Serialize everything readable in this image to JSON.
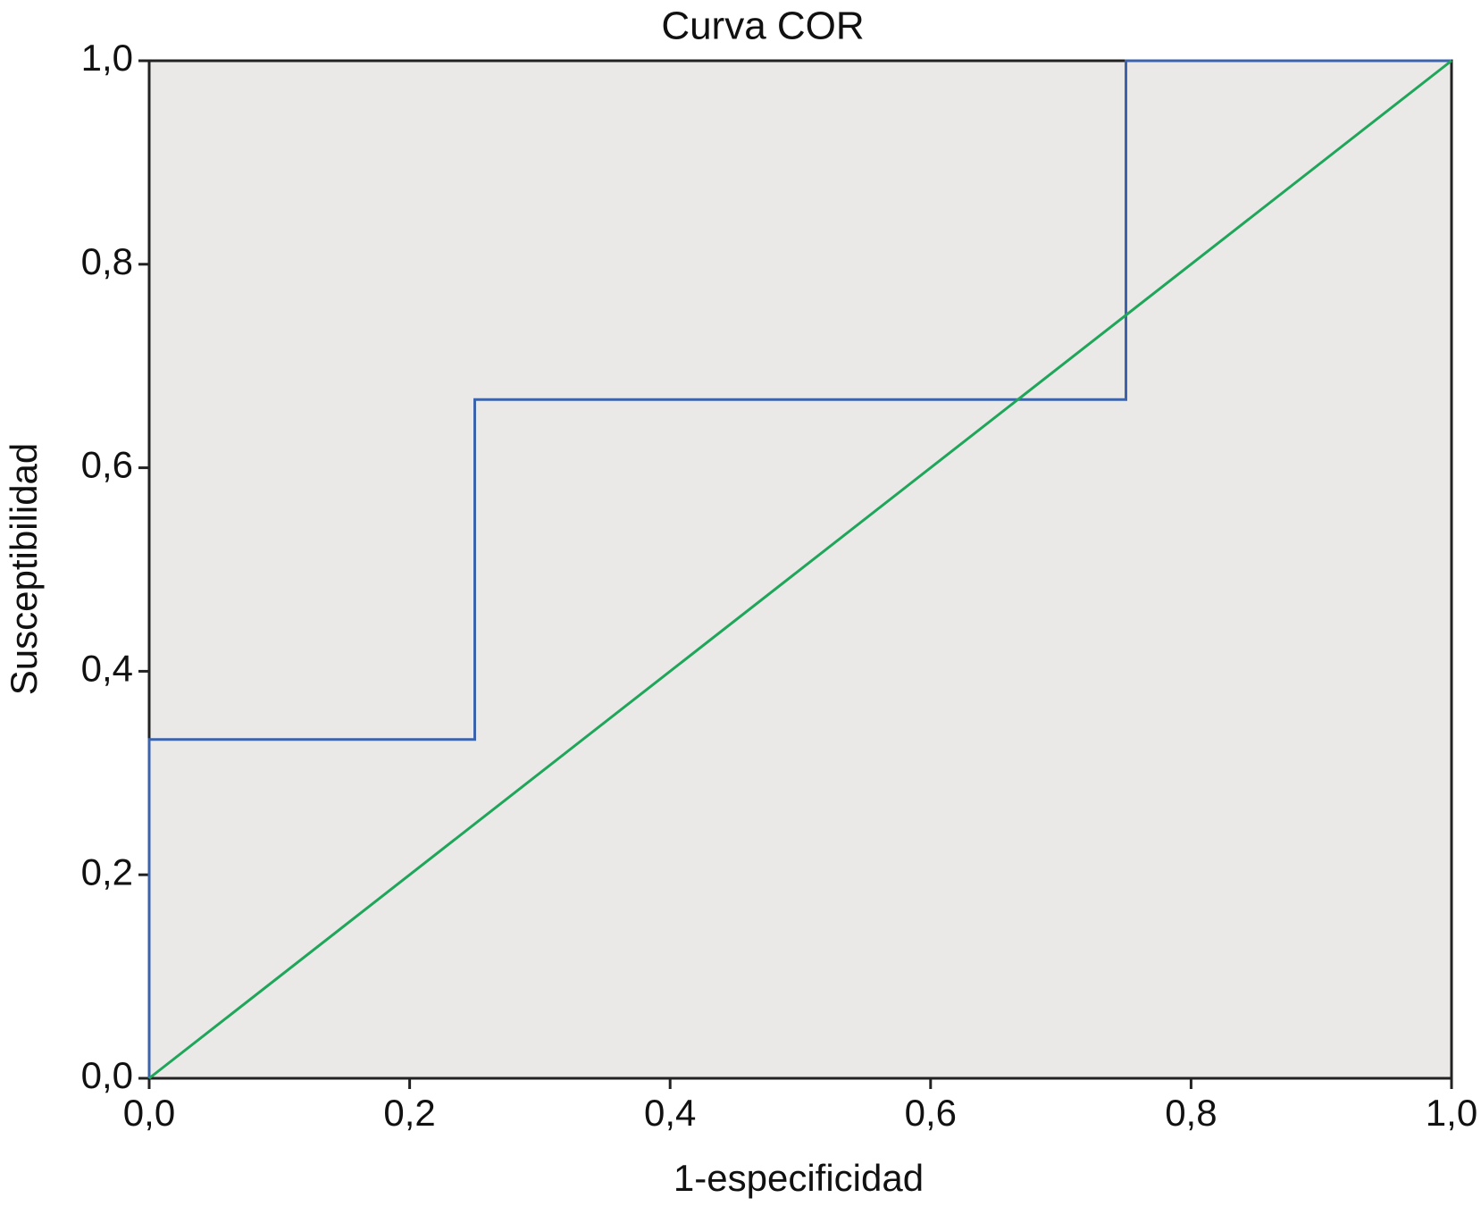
{
  "chart_data": {
    "type": "line",
    "title": "Curva COR",
    "x_label": "1-especificidad",
    "y_label": "Susceptibilidad",
    "xlim": [
      0,
      1
    ],
    "ylim": [
      0,
      1
    ],
    "xticks": [
      {
        "value": 0,
        "label": "0,0"
      },
      {
        "value": 0.2,
        "label": "0,2"
      },
      {
        "value": 0.4,
        "label": "0,4"
      },
      {
        "value": 0.6,
        "label": "0,6"
      },
      {
        "value": 0.8,
        "label": "0,8"
      },
      {
        "value": 1,
        "label": "1,0"
      }
    ],
    "yticks": [
      {
        "value": 0,
        "label": "0,0"
      },
      {
        "value": 0.2,
        "label": "0,2"
      },
      {
        "value": 0.4,
        "label": "0,4"
      },
      {
        "value": 0.6,
        "label": "0,6"
      },
      {
        "value": 0.8,
        "label": "0,8"
      },
      {
        "value": 1,
        "label": "1,0"
      }
    ],
    "series": [
      {
        "color": "#3b64ad",
        "x": [
          0,
          0,
          0.25,
          0.25,
          0.75,
          0.75,
          1
        ],
        "values": [
          0,
          0.333,
          0.333,
          0.667,
          0.667,
          1,
          1
        ]
      },
      {
        "color": "#1fa65a",
        "x": [
          0,
          1
        ],
        "values": [
          0,
          1
        ]
      }
    ]
  }
}
